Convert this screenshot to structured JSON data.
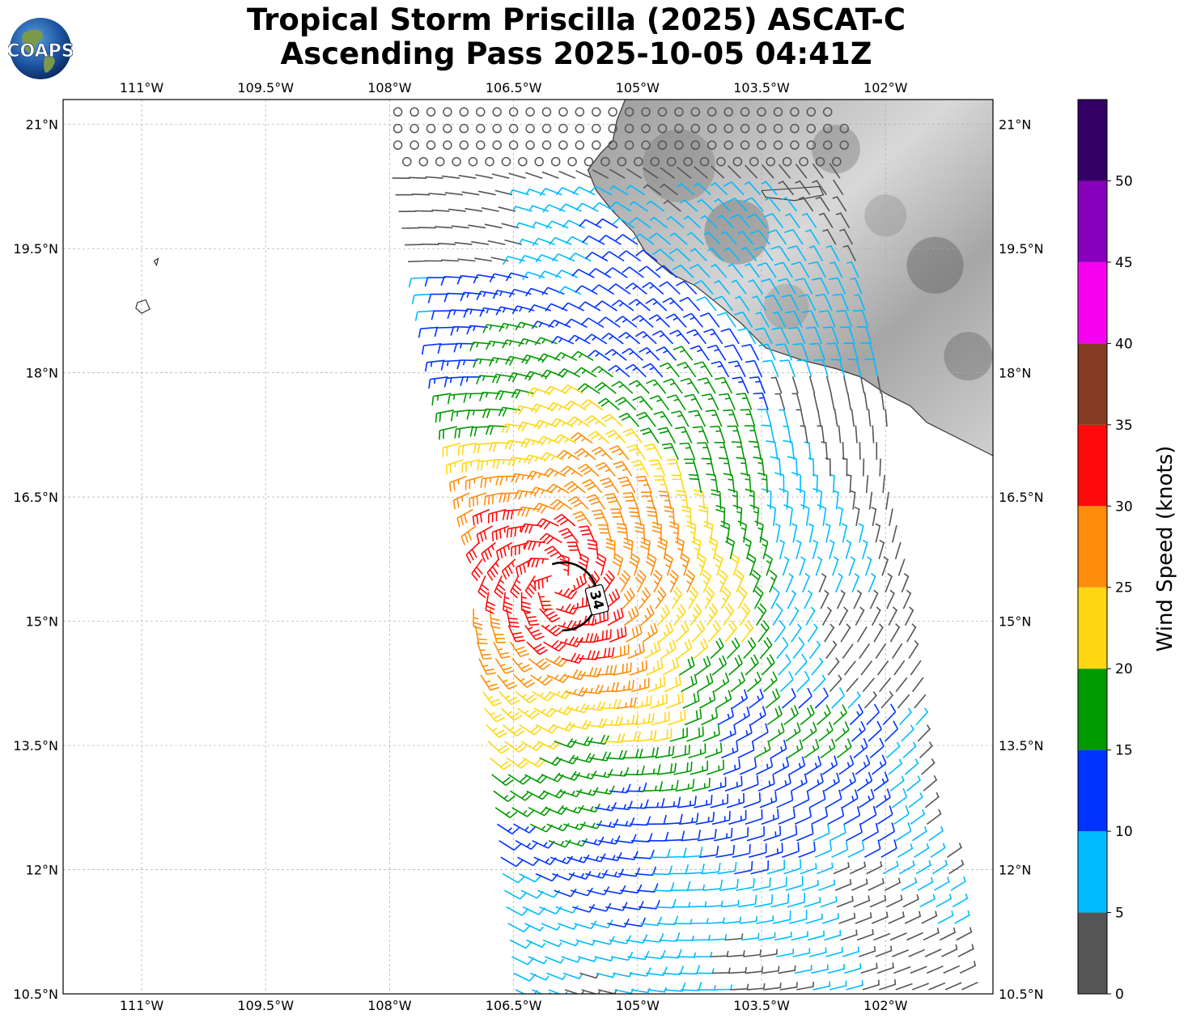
{
  "title": {
    "line1": "Tropical Storm Priscilla (2025) ASCAT-C",
    "line2": "Ascending Pass 2025-10-05 04:41Z"
  },
  "logo": {
    "text": "COAPS",
    "icon": "globe-logo-icon"
  },
  "map": {
    "lon_range": [
      -111.95,
      -100.7
    ],
    "lat_range": [
      10.5,
      21.3
    ],
    "grid": true,
    "lon_ticks": [
      {
        "value": -111.0,
        "label": "111°W"
      },
      {
        "value": -109.5,
        "label": "109.5°W"
      },
      {
        "value": -108.0,
        "label": "108°W"
      },
      {
        "value": -106.5,
        "label": "106.5°W"
      },
      {
        "value": -105.0,
        "label": "105°W"
      },
      {
        "value": -103.5,
        "label": "103.5°W"
      },
      {
        "value": -102.0,
        "label": "102°W"
      }
    ],
    "lat_ticks": [
      {
        "value": 21.0,
        "label": "21°N"
      },
      {
        "value": 19.5,
        "label": "19.5°N"
      },
      {
        "value": 18.0,
        "label": "18°N"
      },
      {
        "value": 16.5,
        "label": "16.5°N"
      },
      {
        "value": 15.0,
        "label": "15°N"
      },
      {
        "value": 13.5,
        "label": "13.5°N"
      },
      {
        "value": 12.0,
        "label": "12°N"
      },
      {
        "value": 10.5,
        "label": "10.5°N"
      }
    ],
    "storm_center": {
      "lon": -106.0,
      "lat": 15.5
    },
    "contour_label": "34",
    "coastline": [
      [
        -105.15,
        21.3
      ],
      [
        -105.25,
        21.05
      ],
      [
        -105.3,
        20.8
      ],
      [
        -105.45,
        20.65
      ],
      [
        -105.6,
        20.45
      ],
      [
        -105.5,
        20.2
      ],
      [
        -105.3,
        19.95
      ],
      [
        -105.05,
        19.7
      ],
      [
        -104.9,
        19.45
      ],
      [
        -104.6,
        19.2
      ],
      [
        -104.3,
        19.05
      ],
      [
        -104.05,
        18.85
      ],
      [
        -103.75,
        18.6
      ],
      [
        -103.45,
        18.3
      ],
      [
        -103.0,
        18.15
      ],
      [
        -102.6,
        18.05
      ],
      [
        -102.3,
        17.95
      ],
      [
        -102.0,
        17.75
      ],
      [
        -101.7,
        17.6
      ],
      [
        -101.5,
        17.4
      ],
      [
        -101.2,
        17.25
      ],
      [
        -100.7,
        17.0
      ]
    ],
    "lake": [
      [
        -103.5,
        20.2
      ],
      [
        -103.2,
        20.22
      ],
      [
        -102.8,
        20.25
      ],
      [
        -102.75,
        20.15
      ],
      [
        -103.1,
        20.08
      ],
      [
        -103.45,
        20.12
      ],
      [
        -103.5,
        20.2
      ]
    ],
    "island_1": [
      [
        -111.05,
        18.85
      ],
      [
        -110.95,
        18.88
      ],
      [
        -110.9,
        18.77
      ],
      [
        -111.0,
        18.72
      ],
      [
        -111.07,
        18.78
      ],
      [
        -111.05,
        18.85
      ]
    ],
    "island_2": [
      [
        -110.85,
        19.35
      ],
      [
        -110.8,
        19.38
      ],
      [
        -110.82,
        19.3
      ],
      [
        -110.85,
        19.35
      ]
    ]
  },
  "colorbar": {
    "label": "Wind Speed (knots)",
    "bins": [
      {
        "min": 0,
        "max": 5,
        "color": "#555555"
      },
      {
        "min": 5,
        "max": 10,
        "color": "#00bbff"
      },
      {
        "min": 10,
        "max": 15,
        "color": "#0033ff"
      },
      {
        "min": 15,
        "max": 20,
        "color": "#009900"
      },
      {
        "min": 20,
        "max": 25,
        "color": "#ffd712"
      },
      {
        "min": 25,
        "max": 30,
        "color": "#ff8c0a"
      },
      {
        "min": 30,
        "max": 35,
        "color": "#ff0a0a"
      },
      {
        "min": 35,
        "max": 40,
        "color": "#843c24"
      },
      {
        "min": 40,
        "max": 45,
        "color": "#f700f0"
      },
      {
        "min": 45,
        "max": 50,
        "color": "#8800bb"
      },
      {
        "min": 50,
        "max": 55,
        "color": "#330066"
      }
    ],
    "ticks": [
      "0",
      "5",
      "10",
      "15",
      "20",
      "25",
      "30",
      "35",
      "40",
      "45",
      "50"
    ]
  }
}
